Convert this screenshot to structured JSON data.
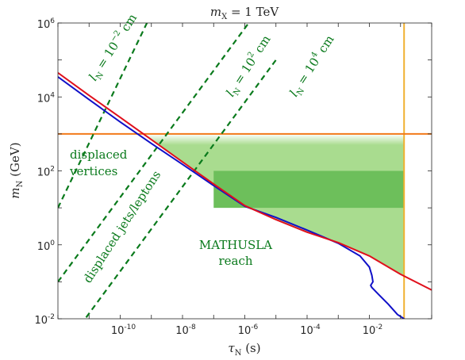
{
  "chart_data": {
    "type": "line",
    "title_var": "m",
    "title_sub": "X",
    "title_rest": " = 1 TeV",
    "xlabel_var": "τ",
    "xlabel_sub": "N",
    "xlabel_unit": " (s)",
    "ylabel_var": "m",
    "ylabel_sub": "N",
    "ylabel_unit": " (GeV)",
    "x_scale": "log",
    "y_scale": "log",
    "xlim": [
      1e-12,
      1
    ],
    "ylim": [
      0.01,
      1000000
    ],
    "grid": false,
    "x_ticks": [
      {
        "base": "10",
        "exp": "-10",
        "value": 1e-10
      },
      {
        "base": "10",
        "exp": "-8",
        "value": 1e-08
      },
      {
        "base": "10",
        "exp": "-6",
        "value": 1e-06
      },
      {
        "base": "10",
        "exp": "-4",
        "value": 0.0001
      },
      {
        "base": "10",
        "exp": "-2",
        "value": 0.01
      }
    ],
    "y_ticks": [
      {
        "base": "10",
        "exp": "-2",
        "value": 0.01
      },
      {
        "base": "10",
        "exp": "0",
        "value": 1
      },
      {
        "base": "10",
        "exp": "2",
        "value": 100
      },
      {
        "base": "10",
        "exp": "4",
        "value": 10000
      },
      {
        "base": "10",
        "exp": "6",
        "value": 1000000
      }
    ],
    "series": [
      {
        "color": "#e0101c",
        "x": [
          1e-12,
          1e-11,
          1e-10,
          1e-09,
          1e-08,
          1e-07,
          1e-06,
          1e-05,
          0.0001,
          0.001,
          0.01,
          0.1,
          1
        ],
        "y": [
          45000,
          11000,
          2800,
          700,
          175,
          44,
          11.5,
          4.8,
          2.2,
          1.15,
          0.5,
          0.16,
          0.06
        ]
      },
      {
        "color": "#1010c8",
        "x": [
          1e-12,
          1e-11,
          1e-10,
          1e-09,
          1e-08,
          1e-07,
          1e-06,
          1e-05,
          0.0001,
          0.001,
          0.005,
          0.01,
          0.012,
          0.013,
          0.011,
          0.012,
          0.02,
          0.04,
          0.08,
          0.13
        ],
        "y": [
          35000,
          8500,
          2100,
          550,
          150,
          40,
          11,
          5.5,
          2.5,
          1.1,
          0.5,
          0.25,
          0.15,
          0.1,
          0.08,
          0.07,
          0.045,
          0.025,
          0.013,
          0.01
        ]
      }
    ],
    "horizontal_line": {
      "y": 1000,
      "color": "#f27a1a"
    },
    "vertical_line": {
      "x": 0.13,
      "color": "#f0b030"
    },
    "shaded_regions": [
      {
        "color": "#a9dc8f",
        "x_right": 0.13,
        "y_top": 1000,
        "lower_series": 0
      },
      {
        "color": "#6dbf5b",
        "x_left": 1e-07,
        "x_right": 0.13,
        "y_range": [
          10,
          100
        ]
      }
    ],
    "dashed_lines": [
      {
        "color": "#0a7a1c",
        "label_var": "l",
        "label_sub": "N",
        "label_rest": " = 10",
        "label_exp": "−2",
        "label_unit": " cm",
        "x": [
          1e-12,
          1e-08
        ],
        "y": [
          10,
          100000000
        ]
      },
      {
        "color": "#0a7a1c",
        "label_var": "l",
        "label_sub": "N",
        "label_rest": " = 10",
        "label_exp": "2",
        "label_unit": " cm",
        "x": [
          1e-12,
          1e-05
        ],
        "y": [
          0.1,
          10000000
        ]
      },
      {
        "color": "#0a7a1c",
        "label_var": "l",
        "label_sub": "N",
        "label_rest": " = 10",
        "label_exp": "4",
        "label_unit": " cm",
        "x": [
          1e-12,
          1e-05
        ],
        "y": [
          0.001,
          100000
        ]
      }
    ],
    "annotations": [
      {
        "lines": [
          "displaced",
          "vertices"
        ]
      },
      {
        "lines": [
          "displaced jets/leptons"
        ]
      },
      {
        "lines": [
          "MATHUSLA",
          "reach"
        ]
      }
    ]
  }
}
